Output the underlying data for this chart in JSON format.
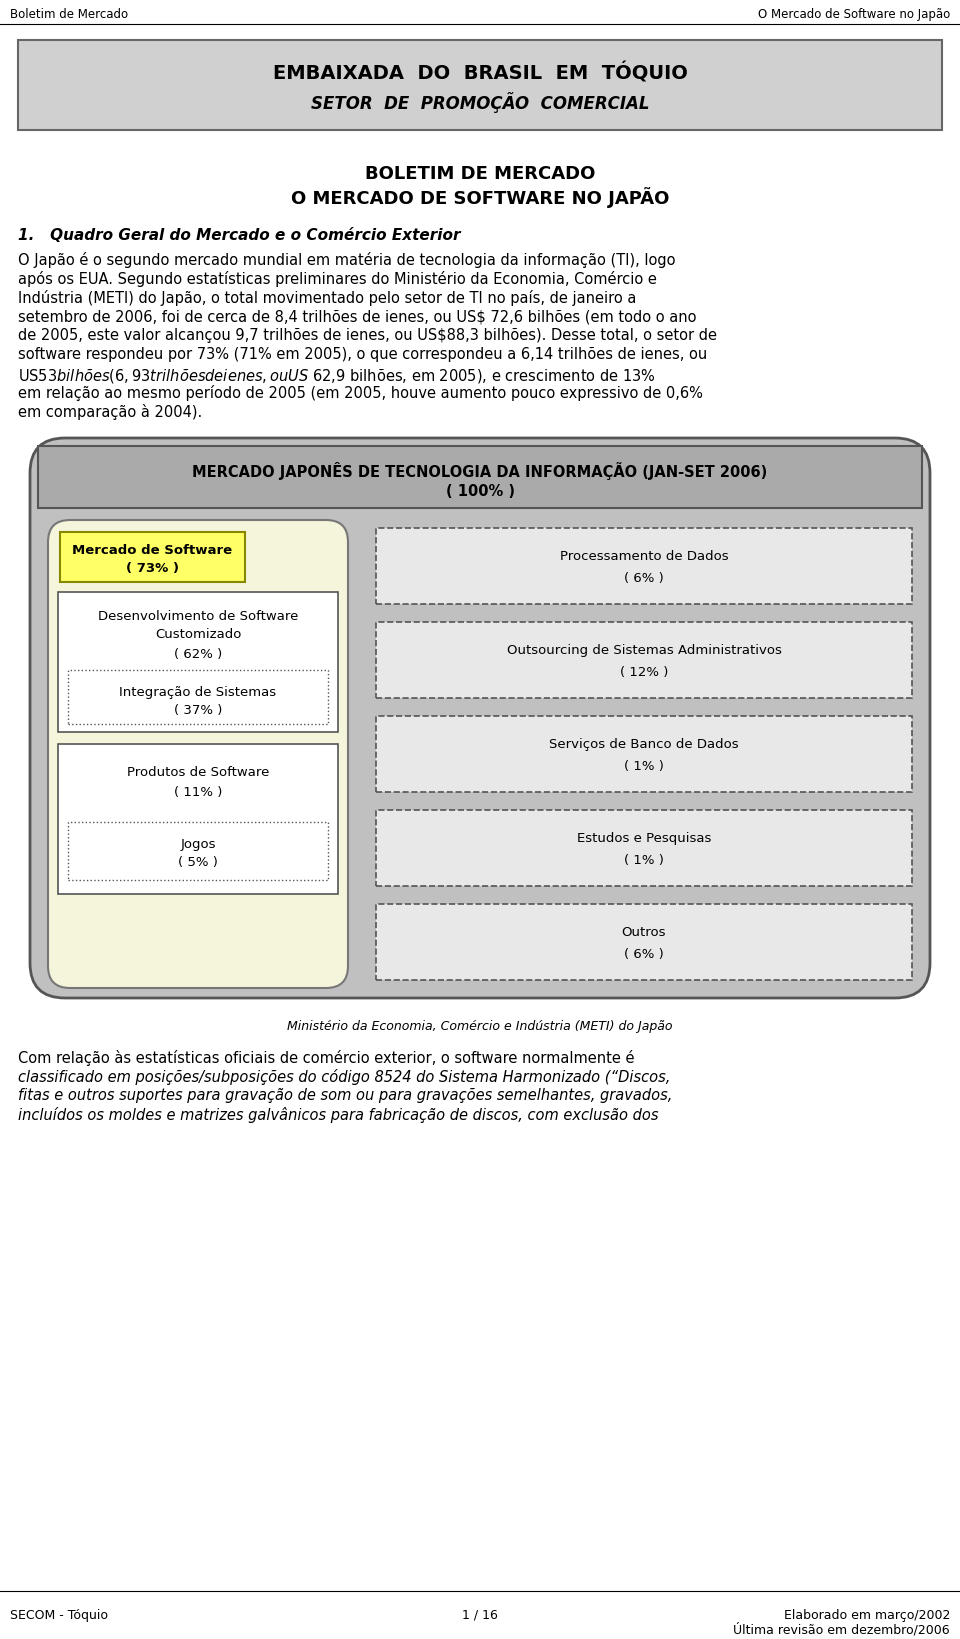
{
  "header_left": "Boletim de Mercado",
  "header_right": "O Mercado de Software no Japão",
  "embaixada_line1": "EMBAIXADA  DO  BRASIL  EM  TÓQUIO",
  "embaixada_line2": "SETOR  DE  PROMOÇÃO  COMERCIAL",
  "title_line1": "BOLETIM DE MERCADO",
  "title_line2": "O MERCADO DE SOFTWARE NO JAPÃO",
  "section1_title": "1.   Quadro Geral do Mercado e o Comércio Exterior",
  "para1_lines": [
    "O Japão é o segundo mercado mundial em matéria de tecnologia da informação (TI), logo",
    "após os EUA. Segundo estatísticas preliminares do Ministério da Economia, Comércio e",
    "Indústria (METI) do Japão, o total movimentado pelo setor de TI no país, de janeiro a",
    "setembro de 2006, foi de cerca de 8,4 trilhões de ienes, ou US$ 72,6 bilhões (em todo o ano",
    "de 2005, este valor alcançou 9,7 trilhões de ienes, ou US$88,3 bilhões). Desse total, o setor de",
    "software respondeu por 73% (71% em 2005), o que correspondeu a 6,14 trilhões de ienes, ou",
    "US$ 53 bilhões (6,93 trilhões de ienes, ou  US$ 62,9 bilhões, em 2005), e crescimento de 13%",
    "em relação ao mesmo período de 2005 (em 2005, houve aumento pouco expressivo de 0,6%",
    "em comparação à 2004)."
  ],
  "diagram_title_line1": "MERCADO JAPONÊS DE TECNOLOGIA DA INFORMAÇÃO (JAN-SET 2006)",
  "diagram_title_line2": "( 100% )",
  "left_main_label1": "Mercado de Software",
  "left_main_label2": "( 73% )",
  "left_box1_label1": "Desenvolvimento de Software",
  "left_box1_label2": "Customizado",
  "left_box1_label3": "( 62% )",
  "left_box2_label1": "Integração de Sistemas",
  "left_box2_label2": "( 37% )",
  "left_box3_label1": "Produtos de Software",
  "left_box3_label2": "( 11% )",
  "left_box4_label1": "Jogos",
  "left_box4_label2": "( 5% )",
  "right_box1_label1": "Processamento de Dados",
  "right_box1_label2": "( 6% )",
  "right_box2_label1": "Outsourcing de Sistemas Administrativos",
  "right_box2_label2": "( 12% )",
  "right_box3_label1": "Serviços de Banco de Dados",
  "right_box3_label2": "( 1% )",
  "right_box4_label1": "Estudos e Pesquisas",
  "right_box4_label2": "( 1% )",
  "right_box5_label1": "Outros",
  "right_box5_label2": "( 6% )",
  "source_label": "Ministério da Economia, Comércio e Indústria (METI) do Japão",
  "para2_lines": [
    "Com relação às estatísticas oficiais de comércio exterior, o software normalmente é",
    "classificado em posições/subposições do código 8524 do Sistema Harmonizado (“Discos,",
    "fitas e outros suportes para gravação de som ou para gravações semelhantes, gravados,",
    "incluídos os moldes e matrizes galvânicos para fabricação de discos, com exclusão dos"
  ],
  "para2_italic": [
    false,
    true,
    true,
    true
  ],
  "footer_left": "SECOM - Tóquio",
  "footer_center": "1 / 16",
  "footer_right1": "Elaborado em março/2002",
  "footer_right2": "Última revisão em dezembro/2006",
  "bg_color": "#ffffff",
  "header_box_color": "#d0d0d0",
  "diagram_outer_color": "#c0c0c0",
  "diagram_title_box_color": "#aaaaaa",
  "diagram_inner_left_color": "#f5f5dc",
  "right_box_bg": "#e8e8e8"
}
